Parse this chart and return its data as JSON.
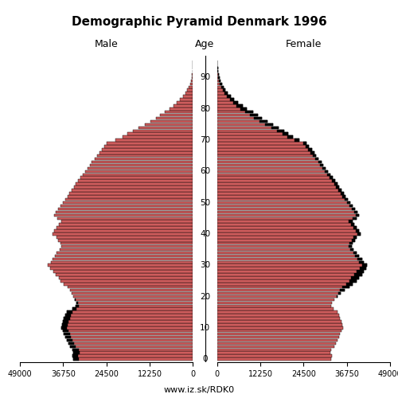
{
  "title": "Demographic Pyramid Denmark 1996",
  "label_male": "Male",
  "label_female": "Female",
  "label_age": "Age",
  "url": "www.iz.sk/RDK0",
  "xlim": 49000,
  "bar_color": "#CD5C5C",
  "bar_color_light": "#E8A0A0",
  "excess_color": "#000000",
  "bar_edge_color": "#000000",
  "bar_linewidth": 0.3,
  "bar_height": 0.9,
  "ages": [
    0,
    1,
    2,
    3,
    4,
    5,
    6,
    7,
    8,
    9,
    10,
    11,
    12,
    13,
    14,
    15,
    16,
    17,
    18,
    19,
    20,
    21,
    22,
    23,
    24,
    25,
    26,
    27,
    28,
    29,
    30,
    31,
    32,
    33,
    34,
    35,
    36,
    37,
    38,
    39,
    40,
    41,
    42,
    43,
    44,
    45,
    46,
    47,
    48,
    49,
    50,
    51,
    52,
    53,
    54,
    55,
    56,
    57,
    58,
    59,
    60,
    61,
    62,
    63,
    64,
    65,
    66,
    67,
    68,
    69,
    70,
    71,
    72,
    73,
    74,
    75,
    76,
    77,
    78,
    79,
    80,
    81,
    82,
    83,
    84,
    85,
    86,
    87,
    88,
    89,
    90,
    91,
    92,
    93,
    94,
    95
  ],
  "male": [
    33800,
    34200,
    33900,
    34100,
    34800,
    35200,
    35800,
    36200,
    36500,
    36800,
    37200,
    37100,
    36800,
    36500,
    36100,
    35700,
    34200,
    33200,
    33000,
    33500,
    33800,
    34300,
    34800,
    35400,
    36600,
    37400,
    38000,
    38800,
    39500,
    40500,
    41000,
    40200,
    39800,
    39100,
    38600,
    37800,
    37200,
    37500,
    38100,
    38700,
    39800,
    39200,
    38600,
    38000,
    37300,
    38500,
    39200,
    38800,
    38200,
    37500,
    36800,
    36200,
    35500,
    35000,
    34300,
    33700,
    33200,
    32500,
    31800,
    31200,
    30600,
    29800,
    29200,
    28600,
    27900,
    27200,
    26500,
    25800,
    25100,
    24400,
    22000,
    20000,
    18500,
    17000,
    15500,
    13500,
    12000,
    10500,
    9200,
    8000,
    6500,
    5500,
    4500,
    3600,
    2800,
    2200,
    1600,
    1200,
    850,
    600,
    380,
    250,
    160,
    100,
    60,
    30
  ],
  "female": [
    32200,
    32500,
    32100,
    32400,
    33200,
    33600,
    34200,
    34600,
    34900,
    35200,
    35600,
    35500,
    35200,
    34900,
    34500,
    34100,
    33100,
    32200,
    32500,
    33200,
    34200,
    35100,
    36200,
    37400,
    38500,
    39500,
    40200,
    41000,
    41600,
    42300,
    42500,
    41600,
    41000,
    40200,
    39500,
    38700,
    38200,
    38500,
    39000,
    39600,
    40700,
    40100,
    39500,
    38900,
    38300,
    39500,
    40100,
    39700,
    39100,
    38400,
    37700,
    37100,
    36400,
    35900,
    35200,
    34600,
    34100,
    33400,
    32700,
    32100,
    31500,
    30700,
    30100,
    29500,
    28800,
    28100,
    27500,
    26800,
    26100,
    25400,
    23200,
    21500,
    20200,
    19000,
    17500,
    15800,
    14300,
    12800,
    11500,
    10200,
    8500,
    7200,
    6000,
    4900,
    3800,
    3100,
    2400,
    1900,
    1400,
    1000,
    680,
    460,
    310,
    200,
    120,
    60
  ]
}
